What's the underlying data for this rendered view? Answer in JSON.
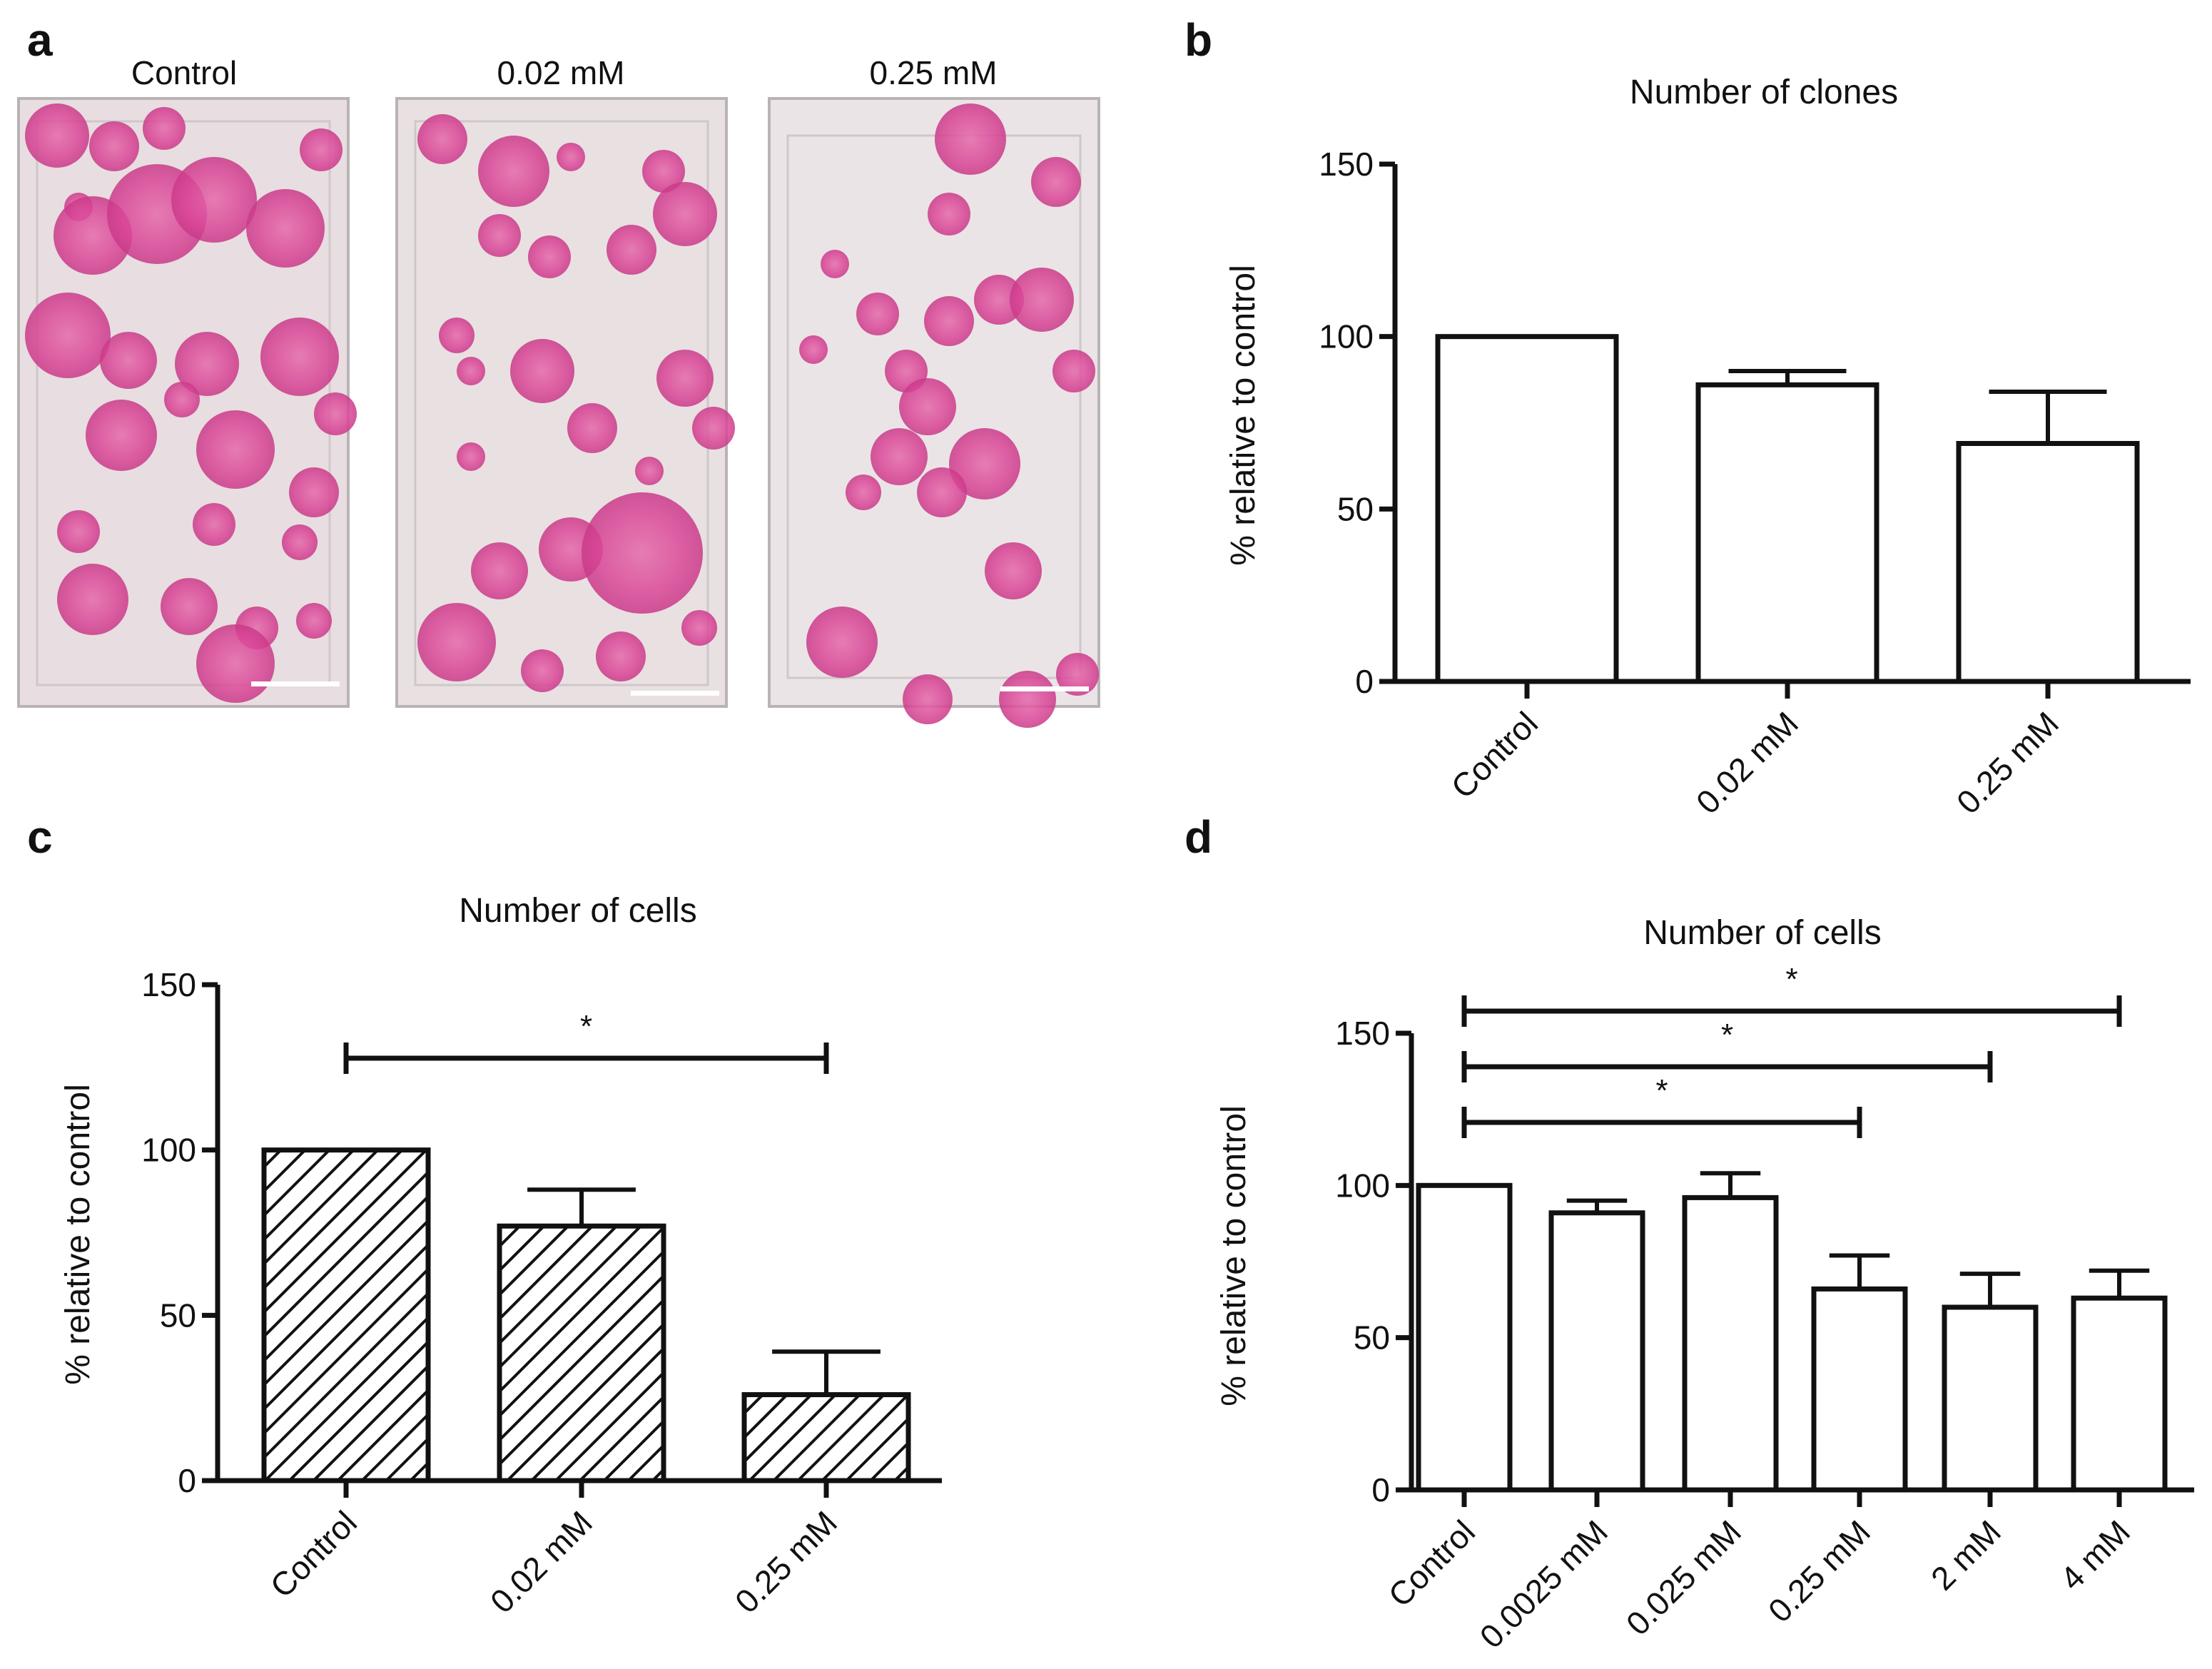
{
  "panel_labels": [
    "a",
    "b",
    "c",
    "d"
  ],
  "panel_a": {
    "columns": [
      "Control",
      "0.02 mM",
      "0.25 mM"
    ],
    "colony_color": "#d94596",
    "plate_color": "#e9dfe2"
  },
  "chart_data": [
    {
      "panel": "b",
      "type": "bar",
      "title": "Number of clones",
      "ylabel": "% relative to control",
      "xlabel": "",
      "categories": [
        "Control",
        "0.02 mM",
        "0.25 mM"
      ],
      "values": [
        100,
        86,
        69
      ],
      "errors": [
        0,
        4,
        15
      ],
      "ylim": [
        0,
        150
      ],
      "yticks": [
        0,
        50,
        100,
        150
      ],
      "fill": "open",
      "grid": false,
      "significance": []
    },
    {
      "panel": "c",
      "type": "bar",
      "title": "Number of cells",
      "ylabel": "%  relative to control",
      "xlabel": "",
      "categories": [
        "Control",
        "0.02 mM",
        "0.25 mM"
      ],
      "values": [
        100,
        77,
        26
      ],
      "errors": [
        0,
        11,
        13
      ],
      "ylim": [
        0,
        150
      ],
      "yticks": [
        0,
        50,
        100,
        150
      ],
      "fill": "hatched",
      "grid": false,
      "significance": [
        {
          "from": "Control",
          "to": "0.25 mM",
          "label": "*"
        }
      ]
    },
    {
      "panel": "d",
      "type": "bar",
      "title": "Number of cells",
      "ylabel": "% relative to control",
      "xlabel": "",
      "categories": [
        "Control",
        "0.0025 mM",
        "0.025 mM",
        "0.25 mM",
        "2 mM",
        "4 mM"
      ],
      "values": [
        100,
        91,
        96,
        66,
        60,
        63
      ],
      "errors": [
        0,
        4,
        8,
        11,
        11,
        9
      ],
      "ylim": [
        0,
        150
      ],
      "yticks": [
        0,
        50,
        100,
        150
      ],
      "fill": "open",
      "grid": false,
      "significance": [
        {
          "from": "Control",
          "to": "4 mM",
          "label": "*"
        },
        {
          "from": "Control",
          "to": "2 mM",
          "label": "*"
        },
        {
          "from": "Control",
          "to": "0.25 mM",
          "label": "*"
        }
      ]
    }
  ]
}
